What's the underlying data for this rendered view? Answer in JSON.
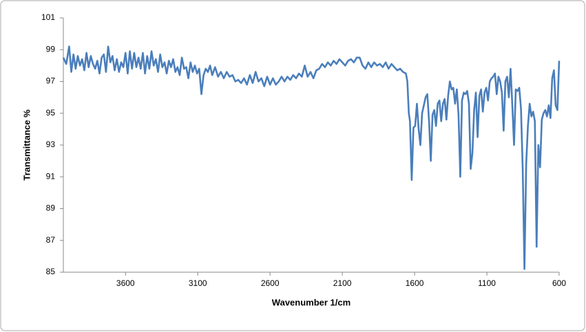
{
  "chart_data": {
    "type": "line",
    "x_label": "Wavenumber 1/cm",
    "y_label": "Transmittance %",
    "color": "#4a7ebb",
    "xlim": [
      4030,
      600
    ],
    "ylim": [
      85,
      101
    ],
    "xticks": [
      3600,
      3100,
      2600,
      2100,
      1600,
      1100,
      600
    ],
    "yticks": [
      85,
      87,
      89,
      91,
      93,
      95,
      97,
      99,
      101
    ],
    "x": [
      4030,
      4010,
      3990,
      3975,
      3960,
      3945,
      3930,
      3915,
      3900,
      3885,
      3870,
      3855,
      3840,
      3825,
      3810,
      3795,
      3780,
      3765,
      3750,
      3735,
      3720,
      3705,
      3690,
      3675,
      3660,
      3645,
      3630,
      3615,
      3600,
      3585,
      3570,
      3555,
      3540,
      3525,
      3510,
      3495,
      3480,
      3465,
      3450,
      3435,
      3420,
      3405,
      3390,
      3375,
      3360,
      3345,
      3330,
      3315,
      3300,
      3285,
      3270,
      3255,
      3240,
      3225,
      3210,
      3195,
      3180,
      3165,
      3150,
      3135,
      3120,
      3105,
      3090,
      3075,
      3060,
      3045,
      3030,
      3015,
      3000,
      2980,
      2960,
      2940,
      2920,
      2900,
      2880,
      2860,
      2840,
      2820,
      2800,
      2780,
      2760,
      2740,
      2720,
      2700,
      2680,
      2660,
      2640,
      2620,
      2600,
      2580,
      2560,
      2540,
      2520,
      2500,
      2480,
      2460,
      2440,
      2420,
      2400,
      2380,
      2360,
      2340,
      2320,
      2300,
      2280,
      2260,
      2240,
      2220,
      2200,
      2180,
      2160,
      2140,
      2120,
      2100,
      2080,
      2060,
      2040,
      2020,
      2000,
      1980,
      1960,
      1940,
      1920,
      1900,
      1880,
      1860,
      1840,
      1820,
      1800,
      1780,
      1760,
      1740,
      1720,
      1700,
      1680,
      1660,
      1650,
      1640,
      1632,
      1620,
      1608,
      1596,
      1584,
      1572,
      1560,
      1548,
      1536,
      1524,
      1512,
      1500,
      1488,
      1476,
      1464,
      1452,
      1440,
      1428,
      1416,
      1404,
      1392,
      1380,
      1368,
      1356,
      1344,
      1332,
      1320,
      1308,
      1296,
      1284,
      1272,
      1260,
      1248,
      1236,
      1224,
      1212,
      1200,
      1188,
      1176,
      1164,
      1152,
      1140,
      1128,
      1116,
      1104,
      1092,
      1080,
      1068,
      1056,
      1044,
      1032,
      1020,
      1008,
      996,
      984,
      972,
      960,
      948,
      936,
      924,
      912,
      900,
      888,
      876,
      864,
      852,
      840,
      828,
      816,
      804,
      792,
      780,
      768,
      756,
      744,
      732,
      720,
      708,
      696,
      684,
      672,
      660,
      648,
      636,
      624,
      612,
      600
    ],
    "values": [
      98.5,
      98.1,
      99.2,
      97.6,
      98.7,
      97.8,
      98.6,
      98.0,
      98.4,
      97.7,
      98.8,
      97.9,
      98.6,
      98.1,
      97.8,
      98.3,
      97.5,
      98.5,
      98.7,
      97.6,
      99.2,
      98.2,
      98.6,
      97.7,
      98.4,
      97.6,
      98.2,
      97.9,
      98.8,
      97.5,
      98.9,
      97.8,
      98.8,
      97.9,
      98.5,
      97.8,
      98.8,
      97.5,
      98.6,
      97.8,
      98.9,
      98.0,
      98.4,
      97.6,
      98.7,
      97.9,
      98.2,
      97.5,
      98.3,
      97.9,
      98.4,
      97.6,
      97.9,
      97.4,
      98.5,
      97.8,
      97.9,
      97.2,
      98.2,
      97.6,
      98.0,
      97.5,
      97.8,
      96.2,
      97.4,
      97.8,
      97.6,
      98.0,
      97.4,
      97.9,
      97.3,
      97.6,
      97.2,
      97.6,
      97.3,
      97.4,
      97.0,
      97.1,
      96.9,
      97.2,
      96.8,
      97.4,
      96.9,
      97.6,
      97.0,
      97.2,
      96.7,
      97.3,
      96.8,
      97.2,
      96.8,
      97.0,
      97.3,
      97.0,
      97.3,
      97.1,
      97.4,
      97.2,
      97.5,
      97.3,
      98.0,
      97.3,
      97.6,
      97.2,
      97.7,
      97.8,
      98.1,
      97.9,
      98.2,
      98.0,
      98.3,
      98.1,
      98.4,
      98.2,
      98.0,
      98.3,
      98.4,
      98.2,
      98.5,
      98.5,
      98.0,
      97.8,
      98.2,
      97.9,
      98.2,
      98.0,
      98.1,
      97.9,
      98.2,
      97.8,
      98.1,
      97.9,
      97.7,
      97.8,
      97.6,
      97.5,
      97.0,
      95.0,
      94.5,
      90.8,
      94.1,
      94.2,
      95.6,
      94.0,
      93.0,
      95.0,
      95.5,
      96.0,
      96.2,
      94.5,
      92.0,
      94.9,
      95.2,
      94.2,
      95.6,
      95.8,
      94.5,
      95.6,
      95.9,
      94.6,
      96.1,
      97.0,
      96.5,
      96.6,
      95.6,
      96.5,
      94.9,
      91.0,
      95.8,
      96.3,
      96.2,
      96.4,
      95.6,
      91.5,
      92.5,
      95.2,
      96.3,
      93.5,
      96.1,
      96.5,
      95.1,
      96.3,
      96.6,
      95.8,
      97.0,
      97.2,
      97.3,
      97.5,
      96.2,
      97.3,
      97.0,
      96.3,
      93.9,
      97.0,
      97.3,
      96.0,
      97.8,
      95.5,
      93.0,
      96.5,
      96.4,
      96.6,
      95.3,
      91.5,
      85.2,
      91.8,
      94.2,
      95.6,
      94.8,
      95.1,
      94.5,
      86.6,
      93.0,
      91.6,
      94.6,
      95.0,
      95.2,
      94.8,
      95.5,
      94.7,
      97.2,
      97.7,
      95.5,
      95.2,
      98.3
    ]
  }
}
